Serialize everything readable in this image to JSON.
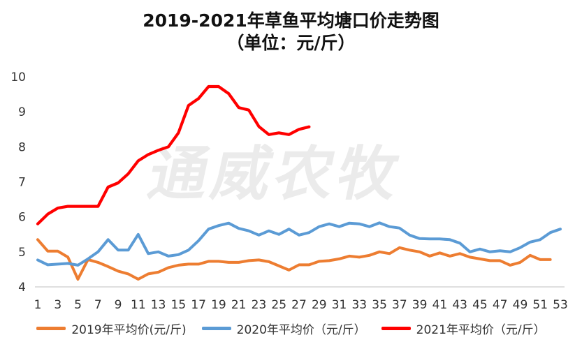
{
  "chart_data": {
    "type": "line",
    "title": "2019-2021年草鱼平均塘口价走势图",
    "subtitle": "（单位：元/斤）",
    "watermark": "通威农牧",
    "x": [
      1,
      2,
      3,
      4,
      5,
      6,
      7,
      8,
      9,
      10,
      11,
      12,
      13,
      14,
      15,
      16,
      17,
      18,
      19,
      20,
      21,
      22,
      23,
      24,
      25,
      26,
      27,
      28,
      29,
      30,
      31,
      32,
      33,
      34,
      35,
      36,
      37,
      38,
      39,
      40,
      41,
      42,
      43,
      44,
      45,
      46,
      47,
      48,
      49,
      50,
      51,
      52,
      53
    ],
    "x_tick_labels": [
      "1",
      "3",
      "5",
      "7",
      "9",
      "11",
      "13",
      "15",
      "17",
      "19",
      "21",
      "23",
      "25",
      "27",
      "29",
      "31",
      "33",
      "35",
      "37",
      "39",
      "41",
      "43",
      "45",
      "47",
      "49",
      "51",
      "53"
    ],
    "y_tick_labels": [
      "4",
      "5",
      "6",
      "7",
      "8",
      "9",
      "10"
    ],
    "xlim": [
      1,
      53
    ],
    "ylim": [
      4,
      10
    ],
    "grid": false,
    "legend_position": "bottom",
    "series": [
      {
        "name": "2019年平均价(元/斤)",
        "color": "#ed7d31",
        "values": [
          5.35,
          5.02,
          5.02,
          4.85,
          4.22,
          4.78,
          4.7,
          4.58,
          4.45,
          4.37,
          4.22,
          4.37,
          4.42,
          4.55,
          4.62,
          4.65,
          4.65,
          4.73,
          4.73,
          4.7,
          4.7,
          4.75,
          4.77,
          4.72,
          4.6,
          4.48,
          4.63,
          4.63,
          4.73,
          4.75,
          4.8,
          4.88,
          4.85,
          4.9,
          5.0,
          4.95,
          5.12,
          5.05,
          5.0,
          4.88,
          4.97,
          4.88,
          4.95,
          4.85,
          4.8,
          4.75,
          4.75,
          4.62,
          4.7,
          4.9,
          4.78,
          4.78,
          null
        ]
      },
      {
        "name": "2020年平均价（元/斤）",
        "color": "#5b9bd5",
        "values": [
          4.77,
          4.63,
          4.65,
          4.67,
          4.62,
          4.8,
          5.0,
          5.35,
          5.05,
          5.05,
          5.5,
          4.95,
          5.0,
          4.88,
          4.92,
          5.05,
          5.32,
          5.65,
          5.75,
          5.82,
          5.67,
          5.6,
          5.48,
          5.6,
          5.5,
          5.65,
          5.48,
          5.55,
          5.72,
          5.8,
          5.72,
          5.82,
          5.8,
          5.72,
          5.83,
          5.72,
          5.68,
          5.48,
          5.38,
          5.37,
          5.37,
          5.35,
          5.25,
          5.0,
          5.08,
          5.0,
          5.03,
          5.0,
          5.12,
          5.28,
          5.35,
          5.55,
          5.65
        ]
      },
      {
        "name": "2021年平均价（元/斤）",
        "color": "#ff0000",
        "values": [
          5.8,
          6.08,
          6.25,
          6.3,
          6.3,
          6.3,
          6.3,
          6.85,
          6.97,
          7.23,
          7.6,
          7.78,
          7.9,
          8.0,
          8.4,
          9.18,
          9.38,
          9.72,
          9.72,
          9.52,
          9.12,
          9.05,
          8.58,
          8.35,
          8.4,
          8.35,
          8.5,
          8.57,
          null,
          null,
          null,
          null,
          null,
          null,
          null,
          null,
          null,
          null,
          null,
          null,
          null,
          null,
          null,
          null,
          null,
          null,
          null,
          null,
          null,
          null,
          null,
          null,
          null
        ]
      }
    ]
  }
}
